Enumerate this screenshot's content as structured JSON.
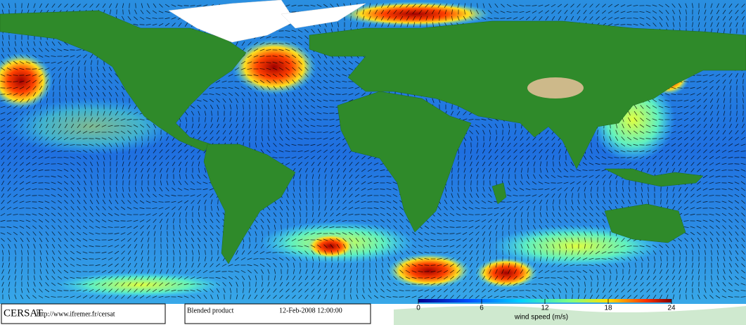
{
  "footer": {
    "logo": "CERSAT",
    "url": "http://www.ifremer.fr/cersat",
    "product": "Blended product",
    "date": "12-Feb-2008 12:00:00"
  },
  "colorbar": {
    "range": [
      0,
      24
    ],
    "ticks": [
      0,
      6,
      12,
      18,
      24
    ],
    "label": "wind speed (m/s)"
  }
}
